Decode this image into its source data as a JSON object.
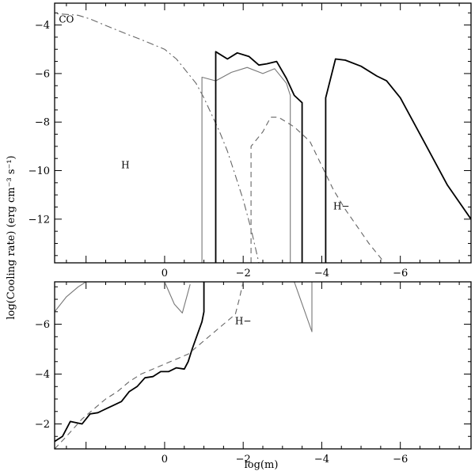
{
  "chart_data": [
    {
      "type": "line",
      "panel": "top",
      "ylabel": "log(Cooling rate)  (erg cm⁻³ s⁻¹)",
      "xlabel": "",
      "xlim": [
        2.8,
        -7.8
      ],
      "ylim": [
        -13.8,
        -3.1
      ],
      "x_ticks": [
        0,
        -2,
        -4,
        -6
      ],
      "y_ticks": [
        -4,
        -6,
        -8,
        -10,
        -12
      ],
      "annotations": [
        {
          "text": "CO",
          "x": 2.5,
          "y": -3.9
        },
        {
          "text": "H",
          "x": 1.0,
          "y": -9.9
        },
        {
          "text": "H−",
          "x": -4.5,
          "y": -11.6
        }
      ],
      "series": [
        {
          "key": "co",
          "label": "CO",
          "style": "dashdot",
          "color": "#666666",
          "x": [
            3.0,
            2.6,
            2.2,
            1.9,
            1.6,
            1.3,
            1.0,
            0.6,
            0.3,
            0.0,
            -0.3,
            -0.5,
            -0.8,
            -1.0,
            -1.2,
            -1.4,
            -1.6,
            -1.8,
            -2.0,
            -2.2,
            -2.4
          ],
          "y": [
            -3.5,
            -3.55,
            -3.6,
            -3.75,
            -3.95,
            -4.15,
            -4.35,
            -4.6,
            -4.8,
            -5.0,
            -5.4,
            -5.8,
            -6.4,
            -7.0,
            -7.7,
            -8.4,
            -9.2,
            -10.2,
            -11.2,
            -12.4,
            -13.8
          ]
        },
        {
          "key": "h-thin",
          "label": "H",
          "style": "solid",
          "color": "#777777",
          "x": [
            -0.95,
            -0.95,
            -1.3,
            -1.7,
            -2.1,
            -2.5,
            -2.8,
            -3.1,
            -3.2,
            -3.2
          ],
          "y": [
            -13.8,
            -6.15,
            -6.3,
            -5.95,
            -5.75,
            -6.0,
            -5.8,
            -6.4,
            -6.9,
            -13.8
          ]
        },
        {
          "key": "h-thick-1",
          "label": "H",
          "style": "solid",
          "color": "#000000",
          "x": [
            -1.3,
            -1.3,
            -1.6,
            -1.85,
            -2.15,
            -2.4,
            -2.6,
            -2.85,
            -3.1,
            -3.3,
            -3.5,
            -3.5
          ],
          "y": [
            -13.8,
            -5.1,
            -5.4,
            -5.15,
            -5.3,
            -5.65,
            -5.6,
            -5.5,
            -6.2,
            -6.9,
            -7.2,
            -13.8
          ]
        },
        {
          "key": "h-thick-2",
          "label": "H",
          "style": "solid",
          "color": "#000000",
          "x": [
            -4.1,
            -4.1,
            -4.35,
            -4.6,
            -5.0,
            -5.4,
            -5.65,
            -6.0,
            -6.6,
            -7.2,
            -7.8
          ],
          "y": [
            -13.8,
            -7.0,
            -5.4,
            -5.45,
            -5.7,
            -6.1,
            -6.3,
            -7.0,
            -8.8,
            -10.6,
            -12.0
          ]
        },
        {
          "key": "hminus",
          "label": "H−",
          "style": "dashed",
          "color": "#666666",
          "x": [
            -2.2,
            -2.2,
            -2.5,
            -2.7,
            -2.9,
            -3.3,
            -3.7,
            -4.0,
            -4.3,
            -4.6,
            -4.9,
            -5.2,
            -5.6
          ],
          "y": [
            -13.8,
            -9.0,
            -8.4,
            -7.8,
            -7.8,
            -8.2,
            -8.8,
            -9.8,
            -10.8,
            -11.6,
            -12.3,
            -13.0,
            -13.8
          ]
        }
      ]
    },
    {
      "type": "line",
      "panel": "bottom",
      "ylabel": "",
      "xlabel": "log(m)",
      "xlim": [
        2.8,
        -7.8
      ],
      "ylim": [
        -1.0,
        -7.7
      ],
      "x_ticks": [
        0,
        -2,
        -4,
        -6
      ],
      "y_ticks": [
        -2,
        -4,
        -6
      ],
      "annotations": [
        {
          "text": "H−",
          "x": -2.0,
          "y": -6.0
        }
      ],
      "series": [
        {
          "key": "thin-top-left",
          "style": "solid",
          "color": "#777777",
          "x": [
            2.8,
            2.5,
            2.2,
            2.0
          ],
          "y": [
            -6.5,
            -7.1,
            -7.5,
            -7.7
          ]
        },
        {
          "key": "thin-dip-1",
          "style": "solid",
          "color": "#777777",
          "x": [
            0.0,
            -0.25,
            -0.45,
            -0.65
          ],
          "y": [
            -7.7,
            -6.8,
            -6.45,
            -7.6
          ]
        },
        {
          "key": "thin-dip-2",
          "style": "solid",
          "color": "#777777",
          "x": [
            -3.3,
            -3.75,
            -3.75
          ],
          "y": [
            -7.7,
            -5.7,
            -7.7
          ]
        },
        {
          "key": "thick",
          "style": "solid",
          "color": "#000000",
          "x": [
            2.8,
            2.6,
            2.4,
            2.1,
            1.9,
            1.7,
            1.5,
            1.3,
            1.1,
            0.9,
            0.7,
            0.5,
            0.3,
            0.1,
            -0.1,
            -0.3,
            -0.5,
            -0.6,
            -0.7,
            -0.95,
            -1.0,
            -1.0
          ],
          "y": [
            -1.3,
            -1.5,
            -2.1,
            -2.0,
            -2.4,
            -2.45,
            -2.6,
            -2.75,
            -2.9,
            -3.3,
            -3.5,
            -3.85,
            -3.9,
            -4.1,
            -4.1,
            -4.25,
            -4.2,
            -4.5,
            -5.0,
            -6.1,
            -6.5,
            -7.7
          ]
        },
        {
          "key": "hminus",
          "style": "dashed",
          "color": "#666666",
          "x": [
            2.8,
            2.5,
            2.1,
            1.8,
            1.5,
            1.2,
            0.9,
            0.6,
            0.3,
            0.0,
            -0.3,
            -0.6,
            -0.9,
            -1.2,
            -1.5,
            -1.8,
            -1.9,
            -2.0
          ],
          "y": [
            -1.0,
            -1.5,
            -2.2,
            -2.6,
            -3.0,
            -3.3,
            -3.7,
            -4.0,
            -4.2,
            -4.4,
            -4.6,
            -4.8,
            -5.2,
            -5.6,
            -6.0,
            -6.4,
            -7.0,
            -7.7
          ]
        }
      ]
    }
  ]
}
